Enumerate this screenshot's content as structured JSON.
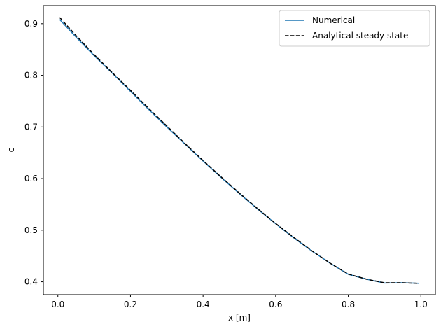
{
  "chart_data": {
    "type": "line",
    "xlabel": "x [m]",
    "ylabel": "c",
    "xlim": [
      -0.04,
      1.04
    ],
    "ylim": [
      0.375,
      0.935
    ],
    "xticks": [
      0.0,
      0.2,
      0.4,
      0.6,
      0.8,
      1.0
    ],
    "xtick_labels": [
      "0.0",
      "0.2",
      "0.4",
      "0.6",
      "0.8",
      "1.0"
    ],
    "yticks": [
      0.4,
      0.5,
      0.6,
      0.7,
      0.8,
      0.9
    ],
    "ytick_labels": [
      "0.4",
      "0.5",
      "0.6",
      "0.7",
      "0.8",
      "0.9"
    ],
    "legend_position": "top-right",
    "grid": false,
    "series": [
      {
        "name": "Numerical",
        "style": "solid",
        "color": "#1f77b4",
        "x": [
          0.005,
          0.05,
          0.1,
          0.15,
          0.2,
          0.25,
          0.3,
          0.35,
          0.4,
          0.45,
          0.5,
          0.55,
          0.6,
          0.65,
          0.7,
          0.75,
          0.8,
          0.85,
          0.9,
          0.95,
          0.995
        ],
        "y": [
          0.908,
          0.874,
          0.838,
          0.804,
          0.769,
          0.734,
          0.7,
          0.667,
          0.634,
          0.602,
          0.571,
          0.541,
          0.5125,
          0.485,
          0.4595,
          0.436,
          0.4145,
          0.405,
          0.3975,
          0.398,
          0.397
        ]
      },
      {
        "name": "Analytical steady state",
        "style": "dashed",
        "color": "#000000",
        "x": [
          0.005,
          0.05,
          0.1,
          0.15,
          0.2,
          0.25,
          0.3,
          0.35,
          0.4,
          0.45,
          0.5,
          0.55,
          0.6,
          0.65,
          0.7,
          0.75,
          0.8,
          0.85,
          0.9,
          0.95,
          0.995
        ],
        "y": [
          0.912,
          0.877,
          0.84,
          0.805,
          0.771,
          0.736,
          0.702,
          0.668,
          0.635,
          0.603,
          0.572,
          0.542,
          0.513,
          0.486,
          0.46,
          0.436,
          0.415,
          0.405,
          0.398,
          0.398,
          0.397
        ]
      }
    ]
  }
}
